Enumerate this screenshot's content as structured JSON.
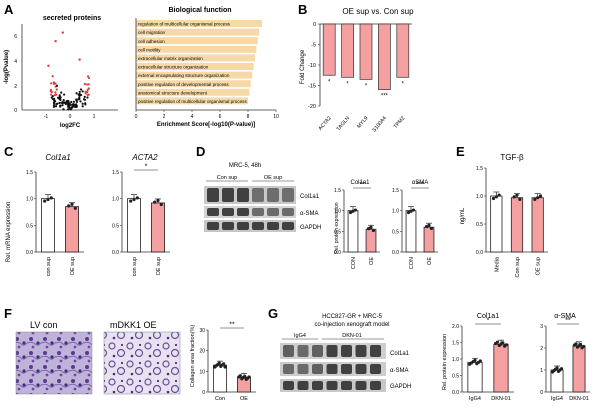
{
  "panels": {
    "A": {
      "letter": "A",
      "volcano": {
        "title": "secreted proteins",
        "xlabel": "log2FC",
        "ylabel": "-log(Pvalue)",
        "yticks": [
          "0",
          "2",
          "4",
          "6"
        ],
        "xticks": [
          "-1",
          "0",
          "1"
        ]
      },
      "go": {
        "title": "Biological function",
        "xlabel": "Enrichment Score[-log10(P-value)]",
        "xticks": [
          "0",
          "2",
          "4",
          "6",
          "8",
          "10"
        ],
        "terms": [
          "regulation of multicellular organismal process",
          "cell migration",
          "cell adhesion",
          "cell motility",
          "extracellular matrix organization",
          "extracellular structure organization",
          "external encapsulating structure organization",
          "positive regulation of developmental process",
          "anatomical structure development",
          "positive regulation of multicellular organismal process"
        ]
      }
    },
    "B": {
      "letter": "B",
      "title": "OE sup vs. Con  sup",
      "ylabel": "Fold Change",
      "yticks": [
        "0",
        "-5",
        "-10",
        "-15",
        "-20"
      ],
      "sig": [
        "*",
        "*",
        "*",
        "***",
        "*"
      ]
    },
    "C": {
      "letter": "C",
      "ylabel": "Rel. mRNA expression",
      "plots": [
        {
          "title": "Col1a1",
          "sig": ""
        },
        {
          "title": "ACTA2",
          "sig": "*"
        }
      ],
      "yticks": [
        "0.0",
        "0.5",
        "1.0",
        "1.5"
      ],
      "groups": [
        "con sup",
        "OE sup"
      ]
    },
    "D": {
      "letter": "D",
      "blot_title": "MRC-5, 48h",
      "lanes": [
        "Con sup",
        "OE sup"
      ],
      "bands": [
        "Col1a1",
        "α-SMA",
        "GAPDH"
      ],
      "ylabel": "Rel. protein expression",
      "plots": [
        {
          "title": "Col1a1",
          "sig": "**"
        },
        {
          "title": "αSMA",
          "sig": "***"
        }
      ],
      "yticks": [
        "0.0",
        "0.5",
        "1.0",
        "1.5"
      ],
      "groups": [
        "CON",
        "OE"
      ]
    },
    "E": {
      "letter": "E",
      "title": "TGF-β",
      "ylabel": "ng/mL",
      "yticks": [
        "0.0",
        "0.5",
        "1.0",
        "1.5"
      ],
      "groups": [
        "Media",
        "Con sup",
        "OE sup"
      ]
    },
    "F": {
      "letter": "F",
      "image_labels": [
        "LV con",
        "mDKK1 OE"
      ],
      "ylabel": "Collagen area fraction(%)",
      "yticks": [
        "0",
        "10",
        "20",
        "30"
      ],
      "groups": [
        "Con",
        "OE"
      ],
      "sig": "**"
    },
    "G": {
      "letter": "G",
      "title_line1": "HCC827-GR + MRC-5",
      "title_line2": "co-injection xenograft model",
      "lanes": [
        "IgG4",
        "DKN-01"
      ],
      "bands": [
        "Col1a1",
        "α-SMA",
        "GAPDH"
      ],
      "ylabel": "Rel. protein expression",
      "plots": [
        {
          "title": "Col1a1",
          "sig": "*"
        },
        {
          "title": "α-SMA",
          "sig": "**"
        }
      ],
      "yticks_left": [
        "0.0",
        "0.5",
        "1.0",
        "1.5",
        "2.0"
      ],
      "yticks_right": [
        "0",
        "1",
        "2",
        "3"
      ],
      "groups": [
        "IgG4",
        "DKN-01"
      ]
    }
  },
  "chart_data": [
    {
      "type": "scatter",
      "title": "secreted proteins",
      "xlabel": "log2FC",
      "ylabel": "-log(Pvalue)",
      "xlim": [
        -2,
        2
      ],
      "ylim": [
        0,
        7
      ],
      "highlight_color": "#e23b3b",
      "base_color": "#111111"
    },
    {
      "type": "bar",
      "title": "Biological function",
      "xlabel": "Enrichment Score[-log10(P-value)]",
      "xlim": [
        0,
        10
      ],
      "values": [
        9.0,
        8.8,
        8.7,
        8.6,
        8.5,
        8.4,
        8.3,
        8.2,
        8.1,
        8.0
      ],
      "color": "#f6d9a6"
    },
    {
      "type": "bar",
      "title": "OE sup vs. Con  sup",
      "categories": [
        "ACTA2",
        "TAGLN",
        "MYL9",
        "S100A4",
        "TPM2"
      ],
      "values": [
        -12.5,
        -13.0,
        -13.5,
        -16.0,
        -13.0
      ],
      "ylabel": "Fold Change",
      "ylim": [
        -20,
        0
      ],
      "color": "#f4a0a0"
    },
    {
      "type": "bar",
      "title": "Col1a1",
      "categories": [
        "con sup",
        "OE sup"
      ],
      "values": [
        1.0,
        0.85
      ],
      "ylim": [
        0,
        1.5
      ]
    },
    {
      "type": "bar",
      "title": "ACTA2",
      "categories": [
        "con sup",
        "OE sup"
      ],
      "values": [
        1.0,
        0.92
      ],
      "ylim": [
        0,
        1.5
      ]
    },
    {
      "type": "bar",
      "title": "Col1a1 protein",
      "categories": [
        "CON",
        "OE"
      ],
      "values": [
        1.0,
        0.55
      ],
      "ylim": [
        0,
        1.5
      ]
    },
    {
      "type": "bar",
      "title": "αSMA protein",
      "categories": [
        "CON",
        "OE"
      ],
      "values": [
        1.0,
        0.6
      ],
      "ylim": [
        0,
        1.5
      ]
    },
    {
      "type": "bar",
      "title": "TGF-β",
      "categories": [
        "Media",
        "Con sup",
        "OE sup"
      ],
      "values": [
        1.0,
        0.97,
        0.97
      ],
      "ylim": [
        0,
        1.5
      ]
    },
    {
      "type": "bar",
      "title": "Collagen area fraction",
      "categories": [
        "Con",
        "OE"
      ],
      "values": [
        13,
        7
      ],
      "ylim": [
        0,
        30
      ]
    },
    {
      "type": "bar",
      "title": "Col1a1 xenograft",
      "categories": [
        "IgG4",
        "DKN-01"
      ],
      "values": [
        0.9,
        1.45
      ],
      "ylim": [
        0,
        2.0
      ]
    },
    {
      "type": "bar",
      "title": "α-SMA xenograft",
      "categories": [
        "IgG4",
        "DKN-01"
      ],
      "values": [
        1.0,
        2.1
      ],
      "ylim": [
        0,
        3
      ]
    }
  ]
}
